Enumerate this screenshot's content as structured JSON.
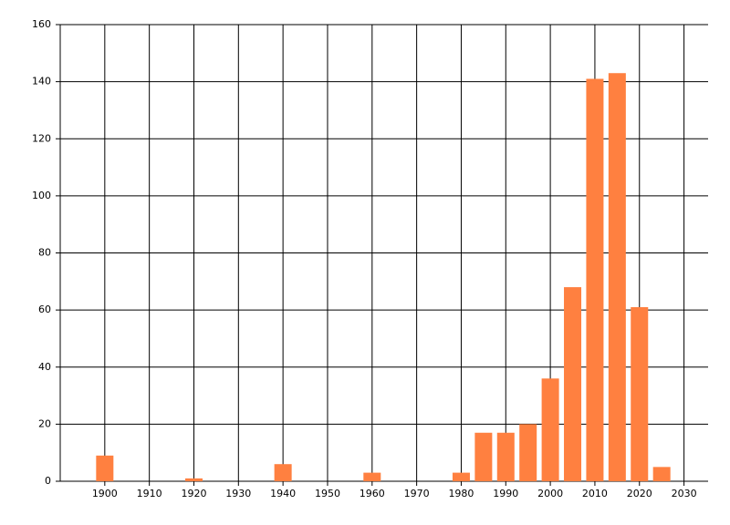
{
  "chart_data": {
    "type": "bar",
    "x": [
      1900,
      1920,
      1940,
      1960,
      1980,
      1985,
      1990,
      1995,
      2000,
      2005,
      2010,
      2015,
      2020,
      2025
    ],
    "values": [
      9,
      1,
      6,
      3,
      3,
      17,
      17,
      20,
      36,
      68,
      141,
      143,
      61,
      5
    ],
    "color": "#ff8040",
    "xlim": [
      1890,
      2035
    ],
    "xticks": [
      1900,
      1910,
      1920,
      1930,
      1940,
      1950,
      1960,
      1970,
      1980,
      1990,
      2000,
      2010,
      2020,
      2030
    ],
    "ylim": [
      0,
      160
    ],
    "yticks": [
      0,
      20,
      40,
      60,
      80,
      100,
      120,
      140,
      160
    ],
    "grid": true
  }
}
